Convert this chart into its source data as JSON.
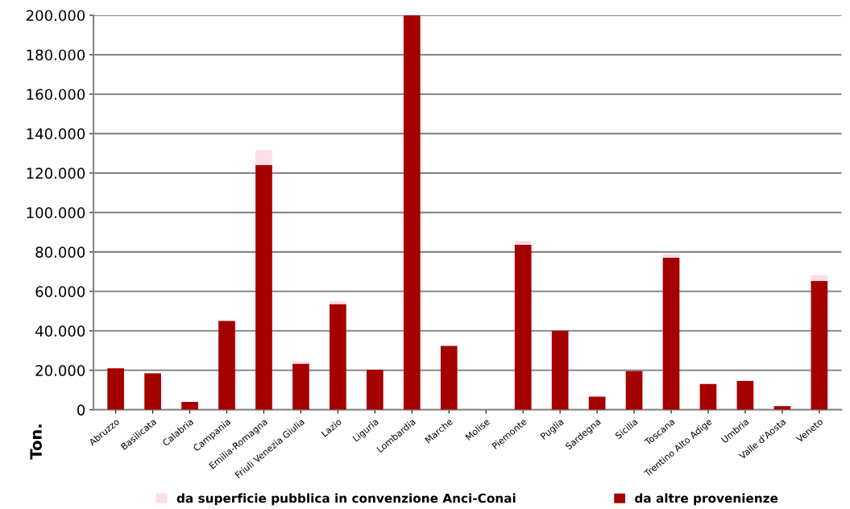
{
  "chart_data": {
    "type": "bar",
    "stacked": true,
    "categories": [
      "Abruzzo",
      "Basilicata",
      "Calabria",
      "Campania",
      "Emilia-Romagna",
      "Friuli Venezia Giulia",
      "Lazio",
      "Liguria",
      "Lombardia",
      "Marche",
      "Molise",
      "Piemonte",
      "Puglia",
      "Sardegna",
      "Sicilia",
      "Toscana",
      "Trentino Alto Adige",
      "Umbria",
      "Valle d'Aosta",
      "Veneto"
    ],
    "series": [
      {
        "name": "da altre provenienze",
        "color": "#a50000",
        "values": [
          21000,
          18500,
          4000,
          45000,
          124000,
          23400,
          53600,
          20200,
          200000,
          32400,
          0,
          83600,
          40000,
          6600,
          19600,
          77100,
          13100,
          14600,
          1800,
          65300
        ]
      },
      {
        "name": "da superficie pubblica in convenzione Anci-Conai",
        "color": "#ffdde4",
        "values": [
          0,
          0,
          0,
          0,
          7600,
          1200,
          1400,
          0,
          0,
          0,
          null,
          2100,
          0,
          0,
          0,
          2000,
          0,
          0,
          null,
          2900
        ]
      }
    ],
    "ylabel": "Ton.",
    "ylim": [
      0,
      200000
    ],
    "yticks": [
      {
        "value": 0,
        "label": "0"
      },
      {
        "value": 20000,
        "label": "20.000"
      },
      {
        "value": 40000,
        "label": "40.000"
      },
      {
        "value": 60000,
        "label": "60.000"
      },
      {
        "value": 80000,
        "label": "80.000"
      },
      {
        "value": 100000,
        "label": "100.000"
      },
      {
        "value": 120000,
        "label": "120.000"
      },
      {
        "value": 140000,
        "label": "140.000"
      },
      {
        "value": 160000,
        "label": "160.000"
      },
      {
        "value": 180000,
        "label": "180.000"
      },
      {
        "value": 200000,
        "label": "200.000"
      }
    ],
    "grid": "y",
    "legend": "bottom"
  }
}
